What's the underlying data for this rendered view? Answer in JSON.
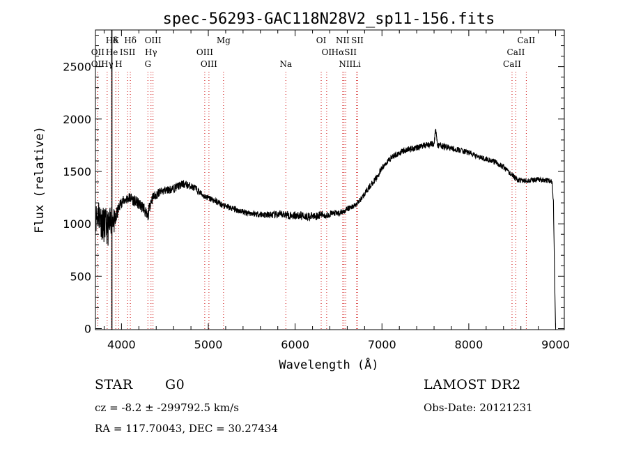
{
  "chart_data": {
    "type": "line",
    "title": "spec-56293-GAC118N28V2_sp11-156.fits",
    "xlabel": "Wavelength (Å)",
    "ylabel": "Flux (relative)",
    "xlim": [
      3700,
      9100
    ],
    "ylim": [
      -10,
      2850
    ],
    "x_ticks": [
      4000,
      5000,
      6000,
      7000,
      8000,
      9000
    ],
    "y_ticks": [
      0,
      500,
      1000,
      1500,
      2000,
      2500
    ],
    "grid": false,
    "line_color": "#000000",
    "marker_color": "#cc0000",
    "series": [
      {
        "x": [
          3700,
          3740,
          3780,
          3820,
          3860,
          3880,
          3900,
          3920,
          3950,
          3990,
          4040,
          4100,
          4180,
          4260,
          4300,
          4330,
          4360,
          4420,
          4500,
          4580,
          4650,
          4720,
          4800,
          4860,
          4940,
          5020,
          5100,
          5180,
          5260,
          5340,
          5420,
          5500,
          5600,
          5700,
          5800,
          5880,
          5950,
          6050,
          6150,
          6250,
          6300,
          6360,
          6420,
          6500,
          6560,
          6620,
          6700,
          6760,
          6820,
          6880,
          6940,
          7000,
          7100,
          7200,
          7300,
          7400,
          7500,
          7560,
          7600,
          7620,
          7640,
          7700,
          7800,
          7900,
          8000,
          8100,
          8200,
          8300,
          8400,
          8480,
          8560,
          8650,
          8750,
          8850,
          8930,
          8960,
          8975,
          8990,
          9000
        ],
        "y": [
          1050,
          1100,
          1000,
          980,
          950,
          1050,
          1080,
          1000,
          1100,
          1200,
          1230,
          1250,
          1200,
          1150,
          1050,
          1200,
          1250,
          1290,
          1320,
          1330,
          1360,
          1380,
          1360,
          1330,
          1270,
          1240,
          1210,
          1170,
          1150,
          1130,
          1110,
          1100,
          1090,
          1085,
          1085,
          1090,
          1080,
          1080,
          1070,
          1075,
          1090,
          1080,
          1100,
          1100,
          1120,
          1150,
          1180,
          1240,
          1310,
          1380,
          1440,
          1530,
          1630,
          1680,
          1710,
          1730,
          1750,
          1760,
          1770,
          1900,
          1750,
          1740,
          1720,
          1700,
          1680,
          1640,
          1620,
          1590,
          1540,
          1480,
          1420,
          1410,
          1420,
          1420,
          1410,
          1390,
          1200,
          400,
          10
        ],
        "noise": [
          140,
          160,
          170,
          170,
          170,
          160,
          140,
          120,
          70,
          50,
          50,
          55,
          55,
          60,
          60,
          55,
          50,
          45,
          40,
          40,
          40,
          40,
          35,
          35,
          30,
          30,
          30,
          30,
          30,
          30,
          30,
          30,
          32,
          35,
          38,
          40,
          40,
          40,
          40,
          38,
          35,
          35,
          32,
          30,
          28,
          28,
          28,
          28,
          28,
          30,
          30,
          30,
          30,
          30,
          30,
          30,
          30,
          30,
          30,
          30,
          30,
          30,
          28,
          28,
          28,
          26,
          26,
          26,
          26,
          25,
          25,
          25,
          25,
          25,
          25,
          25,
          25,
          10,
          0
        ]
      }
    ],
    "line_markers": [
      {
        "label": "Hδ",
        "x": 3889,
        "row": 1,
        "style": "solid"
      },
      {
        "label": "K",
        "x": 3934,
        "row": 1
      },
      {
        "label": "Hδ",
        "x": 4102,
        "row": 1
      },
      {
        "label": "OIII",
        "x": 4363,
        "row": 1
      },
      {
        "label": "Mg",
        "x": 5175,
        "row": 1
      },
      {
        "label": "OI",
        "x": 6300,
        "row": 1
      },
      {
        "label": "NII",
        "x": 6548,
        "row": 1
      },
      {
        "label": "SII",
        "x": 6717,
        "row": 1
      },
      {
        "label": "CaII",
        "x": 8662,
        "row": 1
      },
      {
        "label": "OII",
        "x": 3727,
        "row": 2
      },
      {
        "label": "He",
        "x": 3889,
        "row": 2
      },
      {
        "label": "ISII",
        "x": 4070,
        "row": 2
      },
      {
        "label": "Hγ",
        "x": 4340,
        "row": 2
      },
      {
        "label": "OIII",
        "x": 4959,
        "row": 2
      },
      {
        "label": "OI",
        "x": 6363,
        "row": 2
      },
      {
        "label": "HαSII",
        "x": 6563,
        "row": 2
      },
      {
        "label": "CaII",
        "x": 8542,
        "row": 2
      },
      {
        "label": "OII",
        "x": 3727,
        "row": 3
      },
      {
        "label": "Hγ",
        "x": 3835,
        "row": 3
      },
      {
        "label": "H",
        "x": 3968,
        "row": 3
      },
      {
        "label": "G",
        "x": 4304,
        "row": 3
      },
      {
        "label": "OIII",
        "x": 5007,
        "row": 3
      },
      {
        "label": "Na",
        "x": 5893,
        "row": 3
      },
      {
        "label": "NII",
        "x": 6583,
        "row": 3
      },
      {
        "label": "Li",
        "x": 6708,
        "row": 3
      },
      {
        "label": "CaII",
        "x": 8498,
        "row": 3
      }
    ]
  },
  "info": {
    "object_class": "STAR",
    "subclass": "G0",
    "survey": "LAMOST DR2",
    "redshift": "cz = -8.2 ± -299792.5 km/s",
    "obs_date": "Obs-Date: 20121231",
    "coords": "RA = 117.70043, DEC =  30.27434"
  }
}
